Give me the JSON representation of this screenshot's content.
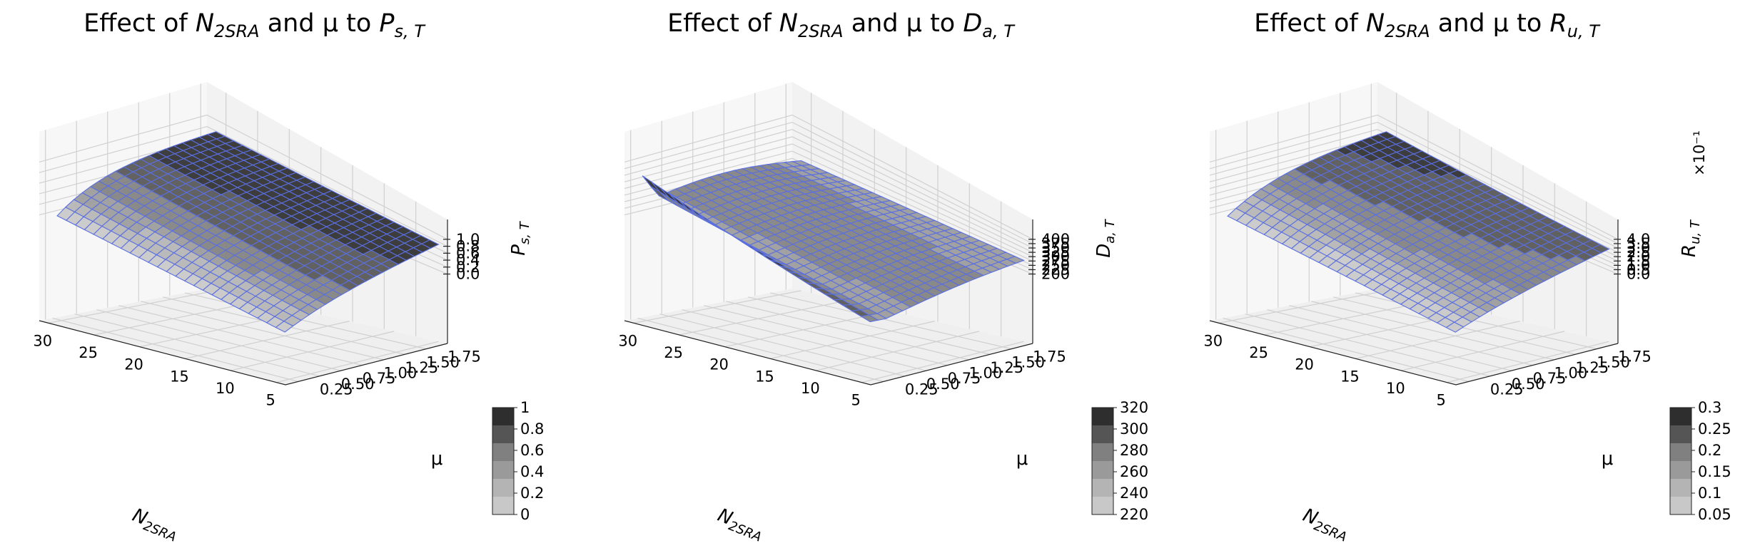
{
  "chart_data": [
    {
      "type": "surface3d",
      "title": {
        "prefix": "Effect of ",
        "var1_base": "N",
        "var1_sub": "2SRA",
        "mid": " and μ to ",
        "var2_base": "P",
        "var2_sub": "s, T"
      },
      "x_axis": {
        "label_base": "N",
        "label_sub": "2SRA",
        "ticks": [
          "30",
          "25",
          "20",
          "15",
          "10",
          "5"
        ],
        "range": [
          4,
          31
        ]
      },
      "y_axis": {
        "label": "μ",
        "ticks": [
          "0.25",
          "0.50",
          "0.75",
          "1.00",
          "1.25",
          "1.50",
          "1.75"
        ],
        "range": [
          0.1,
          2.0
        ]
      },
      "z_axis": {
        "label_base": "P",
        "label_sub": "s, T",
        "ticks": [
          "0.0",
          "0.2",
          "0.4",
          "0.6",
          "0.8",
          "1.0"
        ],
        "range": [
          0,
          1.0
        ],
        "multiplier": ""
      },
      "colorbar": {
        "ticks": [
          "0",
          "0.2",
          "0.4",
          "0.6",
          "0.8",
          "1"
        ]
      },
      "surface": {
        "x_range": [
          5,
          30
        ],
        "y_range": [
          0.2,
          2.0
        ],
        "nx": 26,
        "ny": 20,
        "model": "saturating",
        "z_min": 0.03,
        "z_max": 0.82,
        "x_scale": 5.0
      }
    },
    {
      "type": "surface3d",
      "title": {
        "prefix": "Effect of ",
        "var1_base": "N",
        "var1_sub": "2SRA",
        "mid": " and μ to ",
        "var2_base": "D",
        "var2_sub": "a, T"
      },
      "x_axis": {
        "label_base": "N",
        "label_sub": "2SRA",
        "ticks": [
          "30",
          "25",
          "20",
          "15",
          "10",
          "5"
        ],
        "range": [
          4,
          31
        ]
      },
      "y_axis": {
        "label": "μ",
        "ticks": [
          "0.25",
          "0.50",
          "0.75",
          "1.00",
          "1.25",
          "1.50",
          "1.75"
        ],
        "range": [
          0.1,
          2.0
        ]
      },
      "z_axis": {
        "label_base": "D",
        "label_sub": "a, T",
        "ticks": [
          "200",
          "225",
          "250",
          "275",
          "300",
          "325",
          "350",
          "375",
          "400"
        ],
        "range": [
          200,
          400
        ],
        "multiplier": ""
      },
      "colorbar": {
        "ticks": [
          "220",
          "240",
          "260",
          "280",
          "300",
          "320"
        ]
      },
      "surface": {
        "x_range": [
          5,
          30
        ],
        "y_range": [
          0.2,
          2.0
        ],
        "nx": 26,
        "ny": 20,
        "model": "delay",
        "z_min": 218,
        "z_max": 322
      }
    },
    {
      "type": "surface3d",
      "title": {
        "prefix": "Effect of ",
        "var1_base": "N",
        "var1_sub": "2SRA",
        "mid": " and μ to ",
        "var2_base": "R",
        "var2_sub": "u, T"
      },
      "x_axis": {
        "label_base": "N",
        "label_sub": "2SRA",
        "ticks": [
          "30",
          "25",
          "20",
          "15",
          "10",
          "5"
        ],
        "range": [
          4,
          31
        ]
      },
      "y_axis": {
        "label": "μ",
        "ticks": [
          "0.25",
          "0.50",
          "0.75",
          "1.00",
          "1.25",
          "1.50",
          "1.75"
        ],
        "range": [
          0.1,
          2.0
        ]
      },
      "z_axis": {
        "label_base": "R",
        "label_sub": "u, T",
        "ticks": [
          "0.0",
          "0.5",
          "1.0",
          "1.5",
          "2.0",
          "2.5",
          "3.0",
          "3.5",
          "4.0"
        ],
        "range": [
          0,
          4.0
        ],
        "multiplier": "×10⁻¹"
      },
      "colorbar": {
        "ticks": [
          "0.05",
          "0.1",
          "0.15",
          "0.2",
          "0.25",
          "0.3"
        ]
      },
      "surface": {
        "x_range": [
          5,
          30
        ],
        "y_range": [
          0.2,
          2.0
        ],
        "nx": 26,
        "ny": 20,
        "model": "rate",
        "z_min": 0.1,
        "z_max": 3.4,
        "x_scale": 5.0
      }
    }
  ],
  "colors": {
    "mesh_line": "#5b6fe0",
    "pane_back": "#f2f2f2",
    "pane_side": "#f7f7f7",
    "pane_floor": "#efefef",
    "grid_line": "#d0d0d0",
    "colorbar_levels": [
      "#c8c8c8",
      "#b4b4b4",
      "#9a9a9a",
      "#808080",
      "#555555",
      "#2e2e2e"
    ]
  }
}
